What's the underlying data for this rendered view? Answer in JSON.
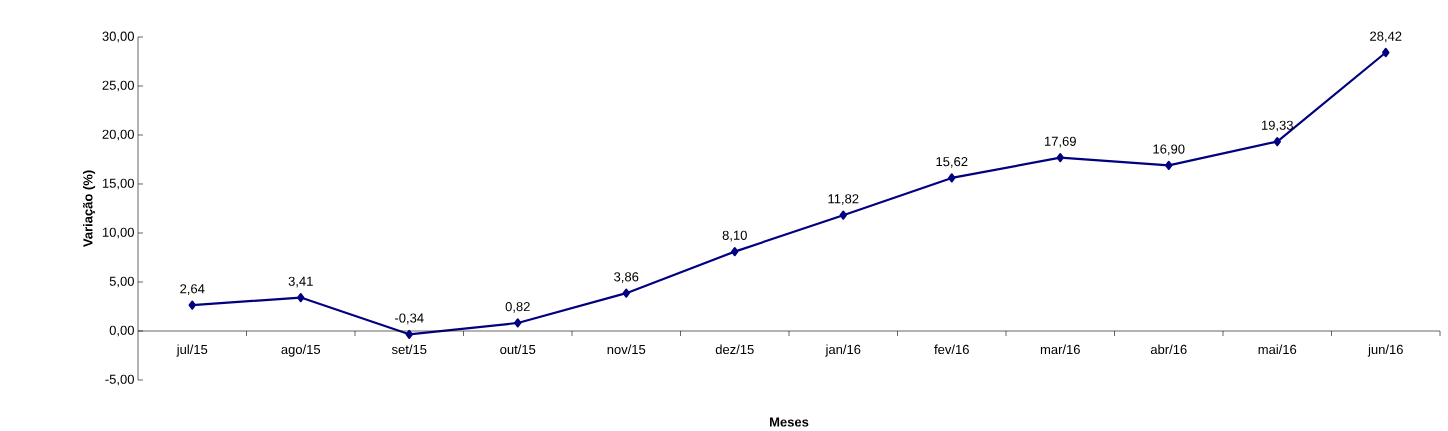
{
  "chart_data": {
    "type": "line",
    "xlabel": "Meses",
    "ylabel": "Variação (%)",
    "categories": [
      "jul/15",
      "ago/15",
      "set/15",
      "out/15",
      "nov/15",
      "dez/15",
      "jan/16",
      "fev/16",
      "mar/16",
      "abr/16",
      "mai/16",
      "jun/16"
    ],
    "series": [
      {
        "color": "#000080",
        "values": [
          2.64,
          3.41,
          -0.34,
          0.82,
          3.86,
          8.1,
          11.82,
          15.62,
          17.69,
          16.9,
          19.33,
          28.42
        ],
        "value_labels": [
          "2,64",
          "3,41",
          "-0,34",
          "0,82",
          "3,86",
          "8,10",
          "11,82",
          "15,62",
          "17,69",
          "16,90",
          "19,33",
          "28,42"
        ]
      }
    ],
    "ylim": [
      -5,
      30
    ],
    "yticks": [
      {
        "value": -5,
        "label": "-5,00"
      },
      {
        "value": 0,
        "label": "0,00"
      },
      {
        "value": 5,
        "label": "5,00"
      },
      {
        "value": 10,
        "label": "10,00"
      },
      {
        "value": 15,
        "label": "15,00"
      },
      {
        "value": 20,
        "label": "20,00"
      },
      {
        "value": 25,
        "label": "25,00"
      },
      {
        "value": 30,
        "label": "30,00"
      }
    ],
    "marker": "diamond",
    "line_style": "solid",
    "grid": false
  }
}
